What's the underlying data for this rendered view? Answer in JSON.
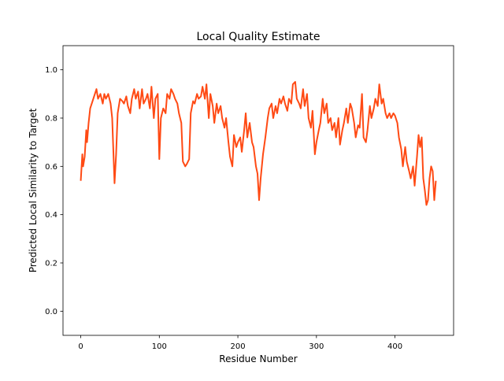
{
  "chart_data": {
    "type": "line",
    "title": "Local Quality Estimate",
    "x_label": "Residue Number",
    "y_label": "Predicted Local Similarity to Target",
    "xlim": [
      -22.6,
      474.6
    ],
    "ylim": [
      -0.1,
      1.1
    ],
    "xticks": [
      0,
      100,
      200,
      300,
      400
    ],
    "yticks": [
      {
        "value": 0,
        "label": "0.0"
      },
      0.2,
      0.4,
      0.6,
      0.8,
      {
        "value": 1,
        "label": "1.0"
      }
    ],
    "grid": false,
    "x": [
      0,
      2,
      3,
      5,
      7,
      8,
      10,
      12,
      15,
      18,
      20,
      22,
      25,
      28,
      30,
      32,
      35,
      38,
      40,
      42,
      43,
      45,
      47,
      50,
      53,
      55,
      58,
      60,
      63,
      65,
      68,
      70,
      73,
      75,
      78,
      80,
      83,
      85,
      88,
      90,
      93,
      95,
      98,
      100,
      102,
      105,
      108,
      110,
      113,
      115,
      118,
      120,
      123,
      125,
      128,
      130,
      133,
      135,
      138,
      140,
      143,
      145,
      148,
      150,
      153,
      155,
      158,
      160,
      163,
      165,
      168,
      170,
      173,
      175,
      178,
      180,
      183,
      185,
      188,
      190,
      193,
      195,
      198,
      200,
      203,
      205,
      208,
      210,
      212,
      215,
      218,
      220,
      223,
      225,
      227,
      229,
      232,
      235,
      238,
      240,
      243,
      245,
      248,
      250,
      253,
      255,
      258,
      260,
      263,
      265,
      268,
      270,
      273,
      275,
      278,
      280,
      283,
      285,
      288,
      290,
      293,
      295,
      298,
      300,
      303,
      305,
      308,
      310,
      313,
      315,
      318,
      320,
      323,
      325,
      328,
      330,
      333,
      335,
      338,
      340,
      343,
      345,
      348,
      350,
      353,
      355,
      358,
      360,
      363,
      365,
      368,
      370,
      373,
      375,
      378,
      380,
      383,
      385,
      388,
      390,
      393,
      395,
      398,
      400,
      403,
      405,
      408,
      410,
      413,
      415,
      418,
      420,
      423,
      425,
      428,
      430,
      432,
      434,
      436,
      438,
      440,
      442,
      444,
      446,
      448,
      450,
      452
    ],
    "series": [
      {
        "color": "#ff4a14",
        "values": [
          0.54,
          0.65,
          0.6,
          0.64,
          0.75,
          0.7,
          0.78,
          0.84,
          0.87,
          0.9,
          0.92,
          0.88,
          0.9,
          0.86,
          0.9,
          0.88,
          0.9,
          0.86,
          0.8,
          0.62,
          0.53,
          0.65,
          0.82,
          0.88,
          0.87,
          0.86,
          0.89,
          0.85,
          0.82,
          0.88,
          0.92,
          0.88,
          0.91,
          0.84,
          0.92,
          0.86,
          0.88,
          0.9,
          0.84,
          0.93,
          0.8,
          0.88,
          0.9,
          0.63,
          0.8,
          0.84,
          0.82,
          0.9,
          0.88,
          0.92,
          0.9,
          0.88,
          0.86,
          0.82,
          0.78,
          0.62,
          0.6,
          0.61,
          0.63,
          0.82,
          0.87,
          0.86,
          0.9,
          0.88,
          0.89,
          0.93,
          0.88,
          0.94,
          0.8,
          0.9,
          0.85,
          0.78,
          0.86,
          0.82,
          0.85,
          0.8,
          0.76,
          0.8,
          0.7,
          0.64,
          0.6,
          0.73,
          0.68,
          0.7,
          0.72,
          0.66,
          0.75,
          0.82,
          0.72,
          0.78,
          0.7,
          0.68,
          0.6,
          0.57,
          0.46,
          0.55,
          0.65,
          0.72,
          0.8,
          0.84,
          0.86,
          0.8,
          0.85,
          0.82,
          0.88,
          0.86,
          0.89,
          0.86,
          0.83,
          0.88,
          0.86,
          0.94,
          0.95,
          0.88,
          0.86,
          0.84,
          0.92,
          0.85,
          0.9,
          0.8,
          0.76,
          0.83,
          0.65,
          0.7,
          0.75,
          0.78,
          0.88,
          0.82,
          0.86,
          0.78,
          0.8,
          0.75,
          0.78,
          0.72,
          0.8,
          0.69,
          0.75,
          0.78,
          0.84,
          0.78,
          0.86,
          0.84,
          0.78,
          0.72,
          0.77,
          0.76,
          0.9,
          0.72,
          0.7,
          0.75,
          0.85,
          0.8,
          0.84,
          0.88,
          0.85,
          0.94,
          0.86,
          0.88,
          0.82,
          0.8,
          0.82,
          0.8,
          0.82,
          0.81,
          0.78,
          0.72,
          0.67,
          0.6,
          0.68,
          0.62,
          0.58,
          0.55,
          0.6,
          0.52,
          0.64,
          0.73,
          0.68,
          0.72,
          0.55,
          0.5,
          0.44,
          0.46,
          0.55,
          0.6,
          0.58,
          0.46,
          0.54
        ]
      }
    ]
  }
}
